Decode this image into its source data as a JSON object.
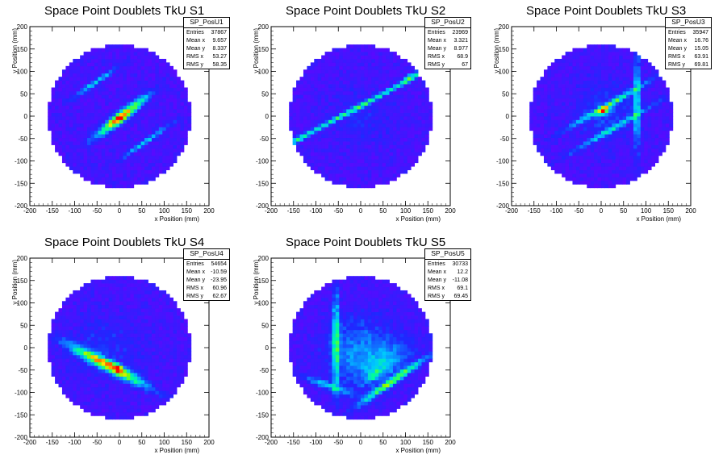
{
  "chart_data": [
    {
      "type": "heatmap",
      "title": "Space Point Doublets TkU S1",
      "xlabel": "x Position (mm)",
      "ylabel": "y Position (mm)",
      "xlim": [
        -200,
        200
      ],
      "ylim": [
        -200,
        200
      ],
      "xticks": [
        -200,
        -150,
        -100,
        -50,
        0,
        50,
        100,
        150,
        200
      ],
      "yticks": [
        -200,
        -150,
        -100,
        -50,
        0,
        50,
        100,
        150,
        200
      ],
      "detector_radius": 160,
      "stats": {
        "name": "SP_PosU1",
        "rows": [
          {
            "label": "Entries",
            "value": "37867"
          },
          {
            "label": "Mean x",
            "value": "9.657"
          },
          {
            "label": "Mean y",
            "value": "8.337"
          },
          {
            "label": "RMS x",
            "value": "53.27"
          },
          {
            "label": "RMS y",
            "value": "58.35"
          }
        ]
      },
      "hotspots": [
        {
          "x": 5,
          "y": 0,
          "sx": 45,
          "sy": 7,
          "angle": 38,
          "amp": 0.8
        },
        {
          "x": 0,
          "y": -5,
          "sx": 10,
          "sy": 6,
          "angle": 38,
          "amp": 0.3
        },
        {
          "x": -55,
          "y": 75,
          "sx": 40,
          "sy": 4,
          "angle": 35,
          "amp": 0.3
        },
        {
          "x": 60,
          "y": -55,
          "sx": 45,
          "sy": 4,
          "angle": 35,
          "amp": 0.3
        }
      ]
    },
    {
      "type": "heatmap",
      "title": "Space Point Doublets TkU S2",
      "xlabel": "x Position (mm)",
      "ylabel": "y Position (mm)",
      "xlim": [
        -200,
        200
      ],
      "ylim": [
        -200,
        200
      ],
      "xticks": [
        -200,
        -150,
        -100,
        -50,
        0,
        50,
        100,
        150,
        200
      ],
      "yticks": [
        -200,
        -150,
        -100,
        -50,
        0,
        50,
        100,
        150,
        200
      ],
      "detector_radius": 160,
      "stats": {
        "name": "SP_PosU2",
        "rows": [
          {
            "label": "Entries",
            "value": "23969"
          },
          {
            "label": "Mean x",
            "value": "3.321"
          },
          {
            "label": "Mean y",
            "value": "8.977"
          },
          {
            "label": "RMS x",
            "value": "68.9"
          },
          {
            "label": "RMS y",
            "value": "67"
          }
        ]
      },
      "hotspots": [
        {
          "x": -10,
          "y": 18,
          "sx": 170,
          "sy": 3.5,
          "angle": 28,
          "amp": 0.42
        },
        {
          "x": 110,
          "y": 88,
          "sx": 14,
          "sy": 4,
          "angle": 28,
          "amp": 0.35
        },
        {
          "x": -140,
          "y": -52,
          "sx": 14,
          "sy": 4,
          "angle": 28,
          "amp": 0.25
        },
        {
          "x": 0,
          "y": 0,
          "sx": 50,
          "sy": 40,
          "angle": 0,
          "amp": 0.06
        }
      ]
    },
    {
      "type": "heatmap",
      "title": "Space Point Doublets TkU S3",
      "xlabel": "x Position (mm)",
      "ylabel": "y Position (mm)",
      "xlim": [
        -200,
        200
      ],
      "ylim": [
        -200,
        200
      ],
      "xticks": [
        -200,
        -150,
        -100,
        -50,
        0,
        50,
        100,
        150,
        200
      ],
      "yticks": [
        -200,
        -150,
        -100,
        -50,
        0,
        50,
        100,
        150,
        200
      ],
      "detector_radius": 160,
      "stats": {
        "name": "SP_PosU3",
        "rows": [
          {
            "label": "Entries",
            "value": "35947"
          },
          {
            "label": "Mean x",
            "value": "16.76"
          },
          {
            "label": "Mean y",
            "value": "15.05"
          },
          {
            "label": "RMS x",
            "value": "63.91"
          },
          {
            "label": "RMS y",
            "value": "69.81"
          }
        ]
      },
      "hotspots": [
        {
          "x": 20,
          "y": 28,
          "sx": 75,
          "sy": 4,
          "angle": 30,
          "amp": 0.38
        },
        {
          "x": 5,
          "y": 12,
          "sx": 12,
          "sy": 5,
          "angle": 30,
          "amp": 0.55
        },
        {
          "x": 80,
          "y": 35,
          "sx": 4,
          "sy": 70,
          "angle": 0,
          "amp": 0.4
        },
        {
          "x": 30,
          "y": -25,
          "sx": 75,
          "sy": 4,
          "angle": 30,
          "amp": 0.3
        },
        {
          "x": 10,
          "y": 10,
          "sx": 45,
          "sy": 45,
          "angle": 0,
          "amp": 0.1
        }
      ]
    },
    {
      "type": "heatmap",
      "title": "Space Point Doublets TkU S4",
      "xlabel": "x Position (mm)",
      "ylabel": "y Position (mm)",
      "xlim": [
        -200,
        200
      ],
      "ylim": [
        -200,
        200
      ],
      "xticks": [
        -200,
        -150,
        -100,
        -50,
        0,
        50,
        100,
        150,
        200
      ],
      "yticks": [
        -200,
        -150,
        -100,
        -50,
        0,
        50,
        100,
        150,
        200
      ],
      "detector_radius": 160,
      "stats": {
        "name": "SP_PosU4",
        "rows": [
          {
            "label": "Entries",
            "value": "54654"
          },
          {
            "label": "Mean x",
            "value": "-10.59"
          },
          {
            "label": "Mean y",
            "value": "-23.95"
          },
          {
            "label": "RMS x",
            "value": "60.96"
          },
          {
            "label": "RMS y",
            "value": "62.67"
          }
        ]
      },
      "hotspots": [
        {
          "x": -25,
          "y": -40,
          "sx": 60,
          "sy": 8,
          "angle": -28,
          "amp": 0.75
        },
        {
          "x": -5,
          "y": -45,
          "sx": 15,
          "sy": 6,
          "angle": -28,
          "amp": 0.3
        },
        {
          "x": -30,
          "y": 0,
          "sx": 60,
          "sy": 50,
          "angle": 0,
          "amp": 0.07
        }
      ]
    },
    {
      "type": "heatmap",
      "title": "Space Point Doublets TkU S5",
      "xlabel": "x Position (mm)",
      "ylabel": "y Position (mm)",
      "xlim": [
        -200,
        200
      ],
      "ylim": [
        -200,
        200
      ],
      "xticks": [
        -200,
        -150,
        -100,
        -50,
        0,
        50,
        100,
        150,
        200
      ],
      "yticks": [
        -200,
        -150,
        -100,
        -50,
        0,
        50,
        100,
        150,
        200
      ],
      "detector_radius": 160,
      "stats": {
        "name": "SP_PosU5",
        "rows": [
          {
            "label": "Entries",
            "value": "30733"
          },
          {
            "label": "Mean x",
            "value": "12.2"
          },
          {
            "label": "Mean y",
            "value": "-11.08"
          },
          {
            "label": "RMS x",
            "value": "69.1"
          },
          {
            "label": "RMS y",
            "value": "69.45"
          }
        ]
      },
      "hotspots": [
        {
          "x": -55,
          "y": 15,
          "sx": 5,
          "sy": 70,
          "angle": 0,
          "amp": 0.45
        },
        {
          "x": 70,
          "y": -75,
          "sx": 60,
          "sy": 5,
          "angle": 35,
          "amp": 0.55
        },
        {
          "x": 30,
          "y": -60,
          "sx": 15,
          "sy": 5,
          "angle": 35,
          "amp": 0.3
        },
        {
          "x": -70,
          "y": -85,
          "sx": 40,
          "sy": 5,
          "angle": -20,
          "amp": 0.3
        },
        {
          "x": 0,
          "y": -10,
          "sx": 50,
          "sy": 50,
          "angle": 0,
          "amp": 0.2
        },
        {
          "x": 60,
          "y": -30,
          "sx": 45,
          "sy": 22,
          "angle": 35,
          "amp": 0.18
        }
      ]
    }
  ]
}
